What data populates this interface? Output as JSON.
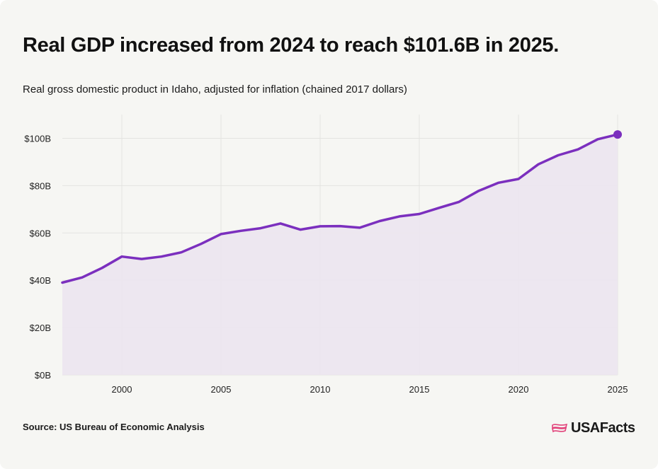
{
  "header": {
    "title": "Real GDP increased from 2024 to reach $101.6B in 2025.",
    "subtitle": "Real gross domestic product in Idaho, adjusted for inflation (chained 2017 dollars)"
  },
  "footer": {
    "source": "Source: US Bureau of Economic Analysis",
    "brand": "USAFacts",
    "brand_icon": "us-flag-map-icon"
  },
  "colors": {
    "line": "#7b2fbe",
    "area": "#ece6ef",
    "grid": "#e4e4e1",
    "background": "#f6f6f3",
    "brand_icon": "#e2427a"
  },
  "chart_data": {
    "type": "area",
    "title": "Real GDP increased from 2024 to reach $101.6B in 2025.",
    "subtitle": "Real gross domestic product in Idaho, adjusted for inflation (chained 2017 dollars)",
    "xlabel": "",
    "ylabel": "",
    "x": [
      1997,
      1998,
      1999,
      2000,
      2001,
      2002,
      2003,
      2004,
      2005,
      2006,
      2007,
      2008,
      2009,
      2010,
      2011,
      2012,
      2013,
      2014,
      2015,
      2016,
      2017,
      2018,
      2019,
      2020,
      2021,
      2022,
      2023,
      2024,
      2025
    ],
    "series": [
      {
        "values": [
          39.0,
          41.2,
          45.2,
          50.0,
          49.0,
          50.0,
          51.8,
          55.4,
          59.5,
          60.9,
          62.0,
          64.0,
          61.4,
          62.8,
          62.9,
          62.2,
          65.0,
          67.0,
          68.0,
          70.6,
          73.1,
          77.8,
          81.2,
          82.8,
          89.0,
          92.8,
          95.3,
          99.6,
          101.6
        ]
      }
    ],
    "ylim": [
      0,
      110
    ],
    "xlim": [
      1997,
      2025
    ],
    "yticks": [
      0,
      20,
      40,
      60,
      80,
      100
    ],
    "ytick_labels": [
      "$0B",
      "$20B",
      "$40B",
      "$60B",
      "$80B",
      "$100B"
    ],
    "xticks": [
      2000,
      2005,
      2010,
      2015,
      2020,
      2025
    ],
    "xtick_labels": [
      "2000",
      "2005",
      "2010",
      "2015",
      "2020",
      "2025"
    ],
    "highlight_last_point": true,
    "grid": true,
    "legend": "none"
  }
}
